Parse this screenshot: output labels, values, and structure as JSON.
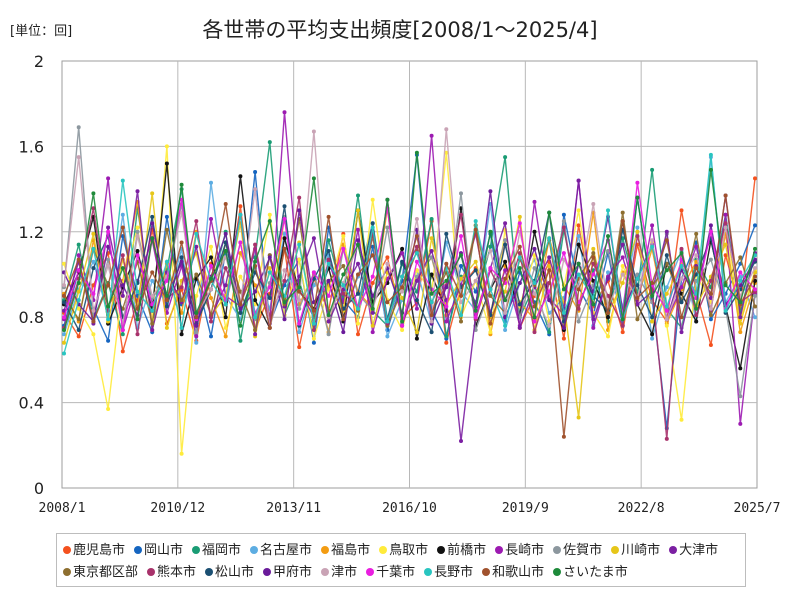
{
  "unit_label": "[単位：回]",
  "chart_data": {
    "type": "line",
    "title": "各世帯の平均支出頻度[2008/1～2025/4]",
    "xlabel": "",
    "ylabel": "",
    "ylim": [
      0,
      2
    ],
    "yticks": [
      "0",
      "0.4",
      "0.8",
      "1.2",
      "1.6",
      "2"
    ],
    "xticks": [
      "2008/1",
      "2010/12",
      "2013/11",
      "2016/10",
      "2019/9",
      "2022/8",
      "2025/7"
    ],
    "x_range": [
      "2008/1",
      "2025/7"
    ],
    "grid": true,
    "legend": "bottom",
    "series": [
      {
        "name": "鹿児島市",
        "color": "#f4511e",
        "values": [
          0.82,
          0.71,
          0.95,
          1.1,
          0.64,
          0.88,
          1.21,
          0.77,
          0.93,
          0.69,
          1.05,
          0.86,
          1.32,
          0.74,
          0.91,
          1.12,
          0.66,
          0.98,
          0.83,
          1.19,
          0.72,
          0.96,
          1.08,
          0.79,
          0.87,
          1.25,
          0.68,
          0.94,
          1.03,
          0.81,
          1.16,
          0.75,
          0.9,
          1.06,
          0.7,
          1.23,
          0.85,
          0.97,
          0.73,
          1.14,
          0.88,
          0.78,
          1.3,
          0.92,
          0.67,
          1.09,
          0.84,
          1.45
        ]
      },
      {
        "name": "岡山市",
        "color": "#1565c0",
        "values": [
          0.76,
          1.02,
          0.84,
          0.69,
          1.18,
          0.9,
          0.73,
          1.27,
          0.86,
          0.99,
          0.71,
          1.11,
          0.82,
          1.48,
          0.77,
          0.95,
          1.07,
          0.68,
          1.22,
          0.88,
          0.8,
          1.13,
          0.74,
          0.97,
          1.56,
          0.83,
          0.7,
          1.04,
          0.92,
          1.19,
          0.78,
          1.01,
          0.87,
          0.72,
          1.28,
          0.94,
          0.81,
          1.1,
          0.76,
          1.36,
          0.89,
          0.28,
          0.98,
          1.15,
          0.79,
          0.91,
          1.05,
          1.23
        ]
      },
      {
        "name": "福岡市",
        "color": "#1a9c74",
        "values": [
          0.88,
          1.14,
          0.79,
          0.96,
          0.72,
          1.31,
          0.85,
          1.02,
          1.4,
          0.77,
          0.93,
          1.2,
          0.69,
          1.08,
          1.62,
          0.81,
          0.97,
          0.74,
          1.16,
          0.9,
          1.37,
          0.83,
          0.76,
          1.05,
          0.92,
          1.26,
          0.71,
          0.99,
          0.87,
          1.13,
          1.55,
          0.8,
          0.95,
          0.73,
          1.21,
          0.86,
          1.02,
          0.78,
          1.17,
          0.91,
          1.49,
          0.84,
          0.75,
          1.07,
          0.94,
          1.28,
          0.82,
          1.1
        ]
      },
      {
        "name": "名古屋市",
        "color": "#5dade2",
        "values": [
          0.72,
          0.93,
          1.06,
          0.81,
          1.28,
          0.75,
          0.97,
          0.86,
          1.12,
          0.68,
          1.43,
          0.9,
          0.79,
          1.03,
          0.84,
          1.19,
          0.73,
          0.95,
          1.09,
          0.8,
          0.99,
          1.24,
          0.71,
          0.88,
          1.02,
          0.77,
          1.15,
          0.92,
          0.83,
          1.33,
          0.74,
          0.96,
          1.07,
          0.82,
          0.89,
          1.18,
          0.76,
          1.01,
          0.85,
          1.22,
          0.7,
          0.94,
          1.11,
          0.78,
          1.55,
          0.87,
          0.99,
          0.8
        ]
      },
      {
        "name": "福島市",
        "color": "#f39c12",
        "values": [
          0.91,
          0.78,
          1.16,
          0.85,
          0.97,
          1.34,
          0.74,
          1.05,
          0.82,
          1.2,
          0.89,
          0.71,
          1.1,
          0.95,
          0.8,
          1.27,
          0.86,
          1.0,
          0.73,
          1.14,
          0.92,
          0.84,
          1.31,
          0.76,
          0.98,
          1.08,
          0.81,
          0.9,
          1.23,
          0.72,
          1.04,
          0.87,
          0.79,
          1.17,
          0.95,
          0.83,
          1.29,
          0.74,
          1.01,
          0.88,
          1.12,
          0.77,
          0.93,
          1.06,
          0.84,
          1.19,
          0.73,
          0.96
        ]
      },
      {
        "name": "鳥取市",
        "color": "#ffeb3b",
        "values": [
          1.05,
          0.84,
          0.72,
          0.37,
          0.96,
          1.22,
          0.79,
          1.6,
          0.16,
          0.9,
          1.13,
          0.75,
          0.99,
          0.86,
          1.28,
          0.81,
          1.07,
          0.7,
          0.93,
          1.18,
          0.77,
          1.35,
          0.88,
          0.74,
          1.02,
          0.91,
          1.57,
          0.8,
          0.97,
          0.73,
          1.21,
          0.85,
          1.09,
          0.78,
          0.94,
          1.3,
          0.82,
          0.71,
          1.04,
          0.89,
          1.15,
          0.76,
          0.32,
          1.0,
          0.87,
          1.24,
          0.79,
          1.02
        ]
      },
      {
        "name": "前橋市",
        "color": "#111111",
        "values": [
          0.86,
          1.01,
          1.27,
          0.77,
          0.94,
          1.11,
          0.83,
          1.52,
          0.72,
          0.98,
          1.08,
          0.8,
          1.46,
          0.88,
          0.75,
          1.17,
          0.92,
          0.84,
          1.03,
          0.78,
          1.3,
          0.87,
          0.96,
          1.12,
          0.7,
          1.0,
          0.83,
          1.31,
          0.76,
          0.93,
          1.06,
          0.81,
          1.2,
          0.89,
          0.74,
          1.14,
          0.97,
          0.8,
          1.25,
          0.86,
          0.72,
          1.05,
          0.91,
          0.78,
          1.16,
          0.85,
          0.56,
          0.97
        ]
      },
      {
        "name": "長崎市",
        "color": "#9c1ab1",
        "values": [
          0.79,
          1.09,
          0.88,
          1.45,
          0.74,
          0.97,
          1.16,
          0.82,
          1.04,
          0.71,
          1.26,
          0.9,
          0.85,
          1.12,
          0.77,
          1.76,
          0.93,
          0.8,
          1.06,
          0.87,
          1.21,
          0.73,
          0.98,
          1.1,
          0.84,
          1.65,
          0.78,
          0.95,
          1.19,
          0.82,
          1.02,
          0.76,
          1.34,
          0.89,
          0.81,
          1.44,
          0.75,
          0.99,
          1.08,
          0.86,
          1.23,
          0.79,
          0.94,
          1.13,
          0.83,
          1.28,
          0.3,
          0.91
        ]
      },
      {
        "name": "佐賀市",
        "color": "#8c979e",
        "values": [
          0.94,
          1.69,
          0.81,
          1.07,
          0.76,
          1.2,
          0.89,
          0.98,
          1.33,
          0.73,
          1.04,
          0.86,
          1.15,
          0.79,
          0.96,
          1.27,
          0.84,
          1.01,
          0.72,
          1.12,
          0.91,
          0.83,
          1.22,
          0.77,
          0.99,
          1.08,
          0.85,
          1.38,
          0.74,
          0.93,
          1.16,
          0.8,
          1.03,
          0.88,
          1.25,
          0.78,
          0.95,
          1.11,
          0.82,
          1.0,
          0.87,
          1.19,
          0.75,
          0.97,
          1.07,
          0.84,
          0.43,
          0.9
        ]
      },
      {
        "name": "川崎市",
        "color": "#e6c619",
        "values": [
          0.68,
          0.92,
          1.19,
          0.78,
          1.07,
          0.84,
          1.38,
          0.75,
          0.97,
          1.1,
          0.81,
          0.9,
          1.24,
          0.71,
          1.03,
          0.88,
          1.15,
          0.79,
          0.95,
          0.83,
          1.3,
          0.76,
          1.01,
          0.89,
          0.73,
          1.17,
          0.86,
          0.98,
          1.06,
          0.8,
          0.92,
          1.27,
          0.74,
          1.04,
          0.87,
          0.33,
          1.12,
          0.82,
          0.96,
          1.2,
          0.78,
          0.91,
          1.05,
          0.85,
          0.99,
          1.14,
          0.77,
          1.01
        ]
      },
      {
        "name": "大津市",
        "color": "#7b1fa2",
        "values": [
          0.83,
          1.06,
          0.77,
          1.22,
          0.9,
          1.39,
          0.74,
          1.01,
          0.87,
          1.13,
          0.8,
          0.95,
          1.28,
          0.72,
          1.09,
          0.85,
          0.99,
          1.17,
          0.78,
          0.93,
          1.05,
          0.82,
          1.35,
          0.76,
          0.97,
          1.11,
          0.88,
          0.22,
          0.81,
          1.03,
          1.24,
          0.75,
          0.94,
          1.08,
          0.84,
          1.44,
          0.79,
          0.98,
          1.14,
          0.86,
          0.92,
          1.2,
          0.73,
          1.04,
          0.89,
          1.37,
          0.8,
          1.1
        ]
      },
      {
        "name": "東京都区部",
        "color": "#8d6e2f",
        "values": [
          0.9,
          0.79,
          1.12,
          0.95,
          0.84,
          1.06,
          0.77,
          1.21,
          0.88,
          1.0,
          0.81,
          1.15,
          0.92,
          0.74,
          1.09,
          0.86,
          1.26,
          0.8,
          0.97,
          1.04,
          0.83,
          1.18,
          0.76,
          0.93,
          1.11,
          0.87,
          1.01,
          0.78,
          1.23,
          0.9,
          0.82,
          1.07,
          0.95,
          1.16,
          0.75,
          0.98,
          1.1,
          0.84,
          1.29,
          0.79,
          0.94,
          1.05,
          0.88,
          1.19,
          0.81,
          0.96,
          1.08,
          0.85
        ]
      },
      {
        "name": "熊本市",
        "color": "#a8326b",
        "values": [
          0.75,
          0.98,
          1.31,
          0.83,
          1.09,
          0.72,
          1.17,
          0.89,
          0.94,
          1.25,
          0.78,
          1.03,
          0.86,
          1.14,
          0.8,
          0.97,
          1.36,
          0.74,
          1.07,
          0.91,
          0.85,
          1.2,
          0.77,
          0.99,
          1.13,
          0.82,
          0.95,
          1.28,
          0.79,
          1.02,
          0.88,
          1.1,
          0.73,
          0.96,
          1.22,
          0.84,
          1.05,
          0.9,
          0.76,
          1.18,
          0.93,
          0.23,
          1.12,
          0.81,
          0.97,
          1.24,
          0.87,
          0.92
        ]
      },
      {
        "name": "松山市",
        "color": "#1b4f72",
        "values": [
          0.87,
          0.74,
          1.03,
          1.18,
          0.8,
          0.96,
          1.27,
          0.85,
          1.08,
          0.77,
          0.93,
          1.15,
          0.82,
          1.01,
          0.89,
          1.32,
          0.76,
          0.98,
          1.11,
          0.84,
          0.91,
          1.24,
          0.79,
          1.06,
          0.88,
          0.73,
          1.19,
          0.94,
          1.02,
          0.81,
          1.14,
          0.86,
          0.97,
          1.29,
          0.78,
          1.05,
          0.9,
          0.83,
          1.21,
          0.95,
          0.8,
          1.09,
          0.87,
          1.0,
          1.17,
          0.82,
          0.93,
          1.06
        ]
      },
      {
        "name": "甲府市",
        "color": "#6a1b9a",
        "values": [
          1.01,
          0.86,
          0.78,
          1.13,
          0.95,
          0.81,
          1.24,
          0.89,
          1.06,
          0.76,
          0.99,
          1.19,
          0.84,
          0.92,
          1.08,
          0.79,
          1.3,
          0.87,
          0.97,
          0.73,
          1.16,
          0.9,
          1.03,
          0.82,
          1.21,
          0.77,
          0.94,
          1.1,
          0.85,
          1.39,
          0.8,
          0.96,
          1.12,
          0.88,
          0.75,
          1.05,
          0.92,
          1.27,
          0.83,
          0.98,
          1.14,
          0.79,
          1.02,
          0.89,
          1.23,
          0.86,
          0.95,
          1.07
        ]
      },
      {
        "name": "津市",
        "color": "#c9a3b5",
        "values": [
          0.95,
          1.55,
          0.83,
          1.04,
          0.77,
          1.18,
          0.9,
          0.99,
          1.29,
          0.81,
          0.93,
          1.08,
          0.86,
          1.4,
          0.75,
          1.02,
          0.88,
          1.67,
          0.8,
          0.96,
          1.14,
          0.84,
          1.05,
          0.92,
          1.26,
          0.78,
          1.68,
          0.87,
          0.97,
          1.11,
          0.82,
          1.2,
          0.91,
          0.76,
          1.07,
          0.94,
          1.33,
          0.85,
          1.0,
          0.89,
          1.16,
          0.79,
          0.98,
          1.09,
          0.84,
          1.22,
          0.9,
          1.03
        ]
      },
      {
        "name": "千葉市",
        "color": "#e91ee0",
        "values": [
          0.8,
          1.02,
          0.91,
          1.2,
          0.74,
          1.09,
          0.86,
          0.97,
          1.35,
          0.79,
          1.04,
          0.88,
          1.15,
          0.82,
          0.94,
          1.26,
          0.77,
          1.01,
          0.9,
          1.12,
          0.84,
          0.99,
          1.31,
          0.76,
          1.06,
          0.93,
          0.85,
          1.18,
          0.8,
          1.03,
          0.96,
          1.24,
          0.78,
          0.92,
          1.1,
          0.87,
          1.0,
          1.16,
          0.81,
          1.43,
          0.95,
          0.83,
          1.07,
          0.89,
          1.2,
          0.84,
          1.01,
          0.93
        ]
      },
      {
        "name": "長野市",
        "color": "#29c5c0",
        "values": [
          0.63,
          0.88,
          1.12,
          0.79,
          1.44,
          0.92,
          0.83,
          1.06,
          0.75,
          1.19,
          0.97,
          0.86,
          1.28,
          0.8,
          1.01,
          0.9,
          1.14,
          0.77,
          1.05,
          0.95,
          0.84,
          1.22,
          0.78,
          0.99,
          1.1,
          0.87,
          1.03,
          0.81,
          1.25,
          0.93,
          0.76,
          1.08,
          0.96,
          1.17,
          0.82,
          1.0,
          0.89,
          1.3,
          0.79,
          0.98,
          1.13,
          0.85,
          1.04,
          0.91,
          1.56,
          0.83,
          0.97,
          1.09
        ]
      },
      {
        "name": "和歌山市",
        "color": "#a0522d",
        "values": [
          0.9,
          1.07,
          0.78,
          0.95,
          1.22,
          0.84,
          1.01,
          0.88,
          1.15,
          0.8,
          0.97,
          1.33,
          0.86,
          1.04,
          0.75,
          1.12,
          0.92,
          0.83,
          1.27,
          0.79,
          1.0,
          1.09,
          0.87,
          0.94,
          1.18,
          0.81,
          1.05,
          0.9,
          1.21,
          0.77,
          0.98,
          1.13,
          0.85,
          1.02,
          0.24,
          0.93,
          1.08,
          0.82,
          1.25,
          0.89,
          0.96,
          1.16,
          0.8,
          1.03,
          0.91,
          1.37,
          0.86,
          0.99
        ]
      },
      {
        "name": "さいたま市",
        "color": "#1e8a3a",
        "values": [
          0.74,
          0.96,
          1.38,
          0.85,
          1.03,
          0.79,
          1.17,
          0.9,
          1.42,
          0.82,
          0.98,
          1.11,
          0.76,
          1.06,
          1.25,
          0.87,
          0.94,
          1.45,
          0.81,
          1.0,
          1.14,
          0.84,
          1.35,
          0.78,
          1.57,
          0.91,
          0.97,
          1.09,
          0.83,
          1.2,
          0.88,
          1.03,
          0.8,
          1.29,
          0.93,
          1.05,
          0.86,
          1.18,
          0.79,
          1.36,
          0.9,
          1.02,
          1.1,
          0.84,
          1.49,
          0.95,
          0.87,
          1.12
        ]
      }
    ]
  }
}
